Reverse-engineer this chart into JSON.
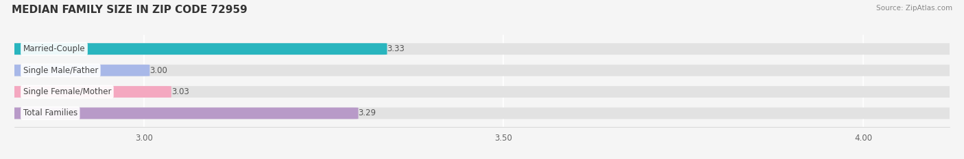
{
  "title": "MEDIAN FAMILY SIZE IN ZIP CODE 72959",
  "source": "Source: ZipAtlas.com",
  "categories": [
    "Married-Couple",
    "Single Male/Father",
    "Single Female/Mother",
    "Total Families"
  ],
  "values": [
    3.33,
    3.0,
    3.03,
    3.29
  ],
  "bar_colors": [
    "#29B5BE",
    "#A8B8E8",
    "#F4A8C0",
    "#B89AC8"
  ],
  "xlim": [
    2.82,
    4.12
  ],
  "xticks": [
    3.0,
    3.5,
    4.0
  ],
  "xtick_labels": [
    "3.00",
    "3.50",
    "4.00"
  ],
  "bar_height": 0.52,
  "background_color": "#f5f5f5",
  "bar_background_color": "#e2e2e2",
  "label_color": "#555555",
  "value_color": "#555555",
  "title_fontsize": 11,
  "label_fontsize": 8.5,
  "value_fontsize": 8.5,
  "tick_fontsize": 8.5
}
